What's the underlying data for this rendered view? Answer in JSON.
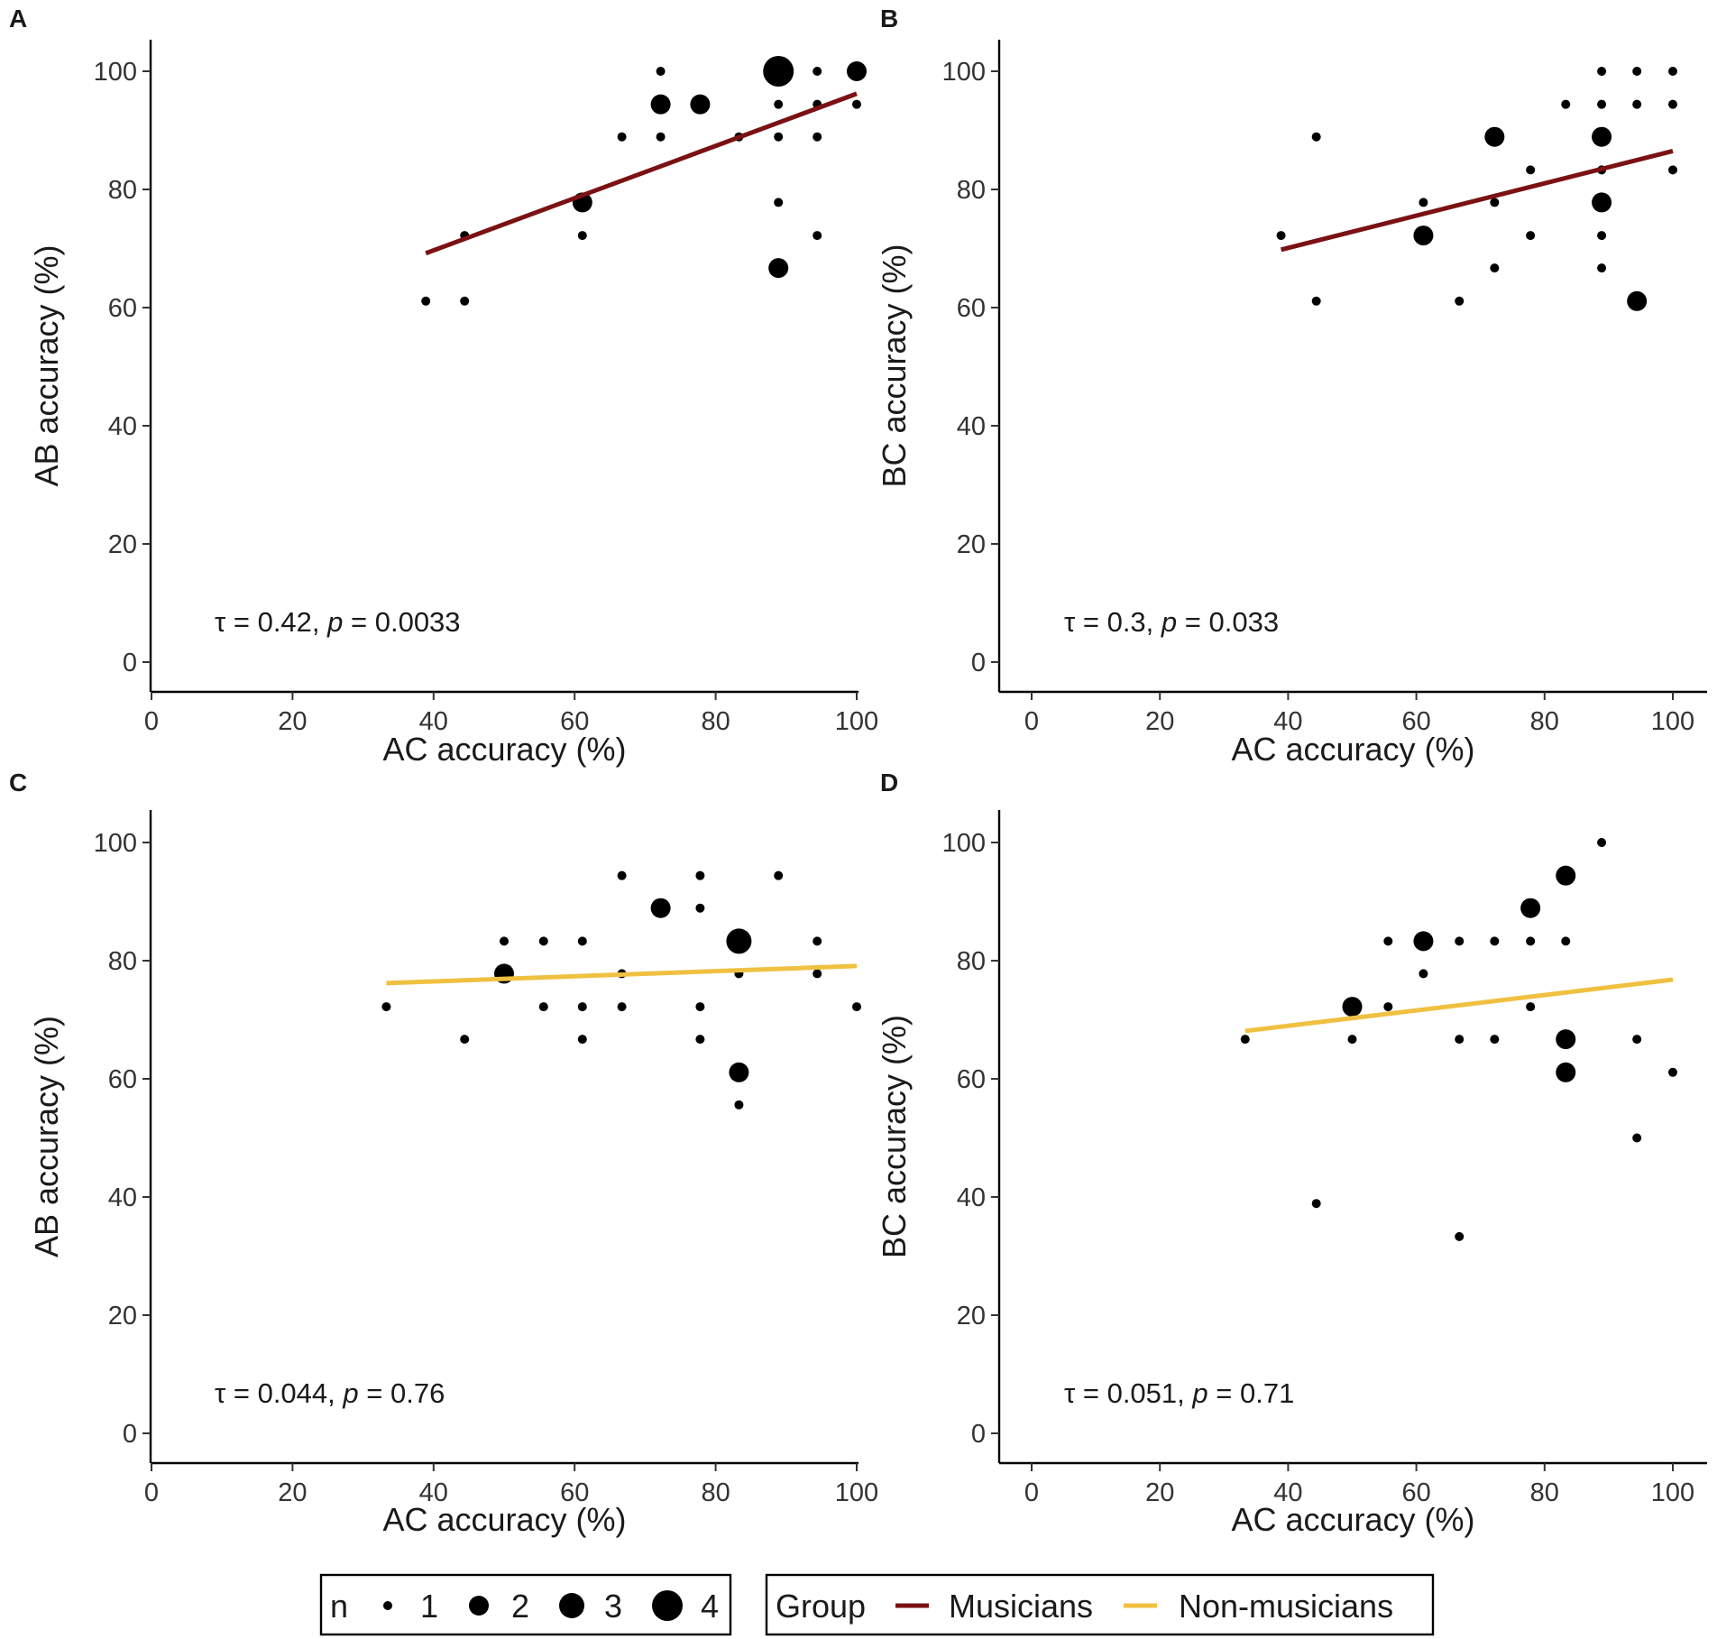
{
  "chart_data": [
    {
      "panel": "A",
      "type": "scatter",
      "xlabel": "AC accuracy (%)",
      "ylabel": "AB accuracy (%)",
      "xlim": [
        -5,
        105
      ],
      "ylim": [
        -5,
        105
      ],
      "xticks": [
        0,
        20,
        40,
        60,
        80,
        100
      ],
      "yticks": [
        0,
        20,
        40,
        60,
        80,
        100
      ],
      "group": "Musicians",
      "annotation": {
        "tau_label": "τ = 0.42, ",
        "p_symbol": "p",
        "p_value": " = 0.0033"
      },
      "fit_line": {
        "x": [
          38.9,
          100
        ],
        "y": [
          69.2,
          96.2
        ]
      },
      "points": [
        {
          "x": 38.9,
          "y": 61.1,
          "n": 1
        },
        {
          "x": 44.4,
          "y": 61.1,
          "n": 1
        },
        {
          "x": 44.4,
          "y": 72.2,
          "n": 1
        },
        {
          "x": 61.1,
          "y": 77.8,
          "n": 2
        },
        {
          "x": 61.1,
          "y": 72.2,
          "n": 1
        },
        {
          "x": 66.7,
          "y": 88.9,
          "n": 1
        },
        {
          "x": 72.2,
          "y": 100,
          "n": 1
        },
        {
          "x": 72.2,
          "y": 94.4,
          "n": 2
        },
        {
          "x": 72.2,
          "y": 88.9,
          "n": 1
        },
        {
          "x": 77.8,
          "y": 94.4,
          "n": 2
        },
        {
          "x": 83.3,
          "y": 88.9,
          "n": 1
        },
        {
          "x": 88.9,
          "y": 100,
          "n": 4
        },
        {
          "x": 88.9,
          "y": 94.4,
          "n": 1
        },
        {
          "x": 88.9,
          "y": 88.9,
          "n": 1
        },
        {
          "x": 88.9,
          "y": 77.8,
          "n": 1
        },
        {
          "x": 88.9,
          "y": 66.7,
          "n": 2
        },
        {
          "x": 94.4,
          "y": 100,
          "n": 1
        },
        {
          "x": 94.4,
          "y": 94.4,
          "n": 1
        },
        {
          "x": 94.4,
          "y": 88.9,
          "n": 1
        },
        {
          "x": 94.4,
          "y": 72.2,
          "n": 1
        },
        {
          "x": 100,
          "y": 100,
          "n": 2
        },
        {
          "x": 100,
          "y": 94.4,
          "n": 1
        }
      ]
    },
    {
      "panel": "B",
      "type": "scatter",
      "xlabel": "AC accuracy (%)",
      "ylabel": "BC accuracy (%)",
      "xlim": [
        -5,
        105
      ],
      "ylim": [
        -5,
        105
      ],
      "xticks": [
        0,
        20,
        40,
        60,
        80,
        100
      ],
      "yticks": [
        0,
        20,
        40,
        60,
        80,
        100
      ],
      "group": "Musicians",
      "annotation": {
        "tau_label": "τ = 0.3, ",
        "p_symbol": "p",
        "p_value": " = 0.033"
      },
      "fit_line": {
        "x": [
          38.9,
          100
        ],
        "y": [
          69.8,
          86.5
        ]
      },
      "points": [
        {
          "x": 38.9,
          "y": 72.2,
          "n": 1
        },
        {
          "x": 44.4,
          "y": 88.9,
          "n": 1
        },
        {
          "x": 44.4,
          "y": 61.1,
          "n": 1
        },
        {
          "x": 61.1,
          "y": 77.8,
          "n": 1
        },
        {
          "x": 61.1,
          "y": 72.2,
          "n": 2
        },
        {
          "x": 66.7,
          "y": 61.1,
          "n": 1
        },
        {
          "x": 72.2,
          "y": 88.9,
          "n": 2
        },
        {
          "x": 72.2,
          "y": 77.8,
          "n": 1
        },
        {
          "x": 72.2,
          "y": 66.7,
          "n": 1
        },
        {
          "x": 77.8,
          "y": 83.3,
          "n": 1
        },
        {
          "x": 77.8,
          "y": 72.2,
          "n": 1
        },
        {
          "x": 83.3,
          "y": 94.4,
          "n": 1
        },
        {
          "x": 88.9,
          "y": 100,
          "n": 1
        },
        {
          "x": 88.9,
          "y": 94.4,
          "n": 1
        },
        {
          "x": 88.9,
          "y": 88.9,
          "n": 2
        },
        {
          "x": 88.9,
          "y": 83.3,
          "n": 1
        },
        {
          "x": 88.9,
          "y": 77.8,
          "n": 2
        },
        {
          "x": 88.9,
          "y": 72.2,
          "n": 1
        },
        {
          "x": 88.9,
          "y": 66.7,
          "n": 1
        },
        {
          "x": 94.4,
          "y": 100,
          "n": 1
        },
        {
          "x": 94.4,
          "y": 94.4,
          "n": 1
        },
        {
          "x": 94.4,
          "y": 61.1,
          "n": 2
        },
        {
          "x": 100,
          "y": 100,
          "n": 1
        },
        {
          "x": 100,
          "y": 94.4,
          "n": 1
        },
        {
          "x": 100,
          "y": 83.3,
          "n": 1
        }
      ]
    },
    {
      "panel": "C",
      "type": "scatter",
      "xlabel": "AC accuracy (%)",
      "ylabel": "AB accuracy (%)",
      "xlim": [
        -5,
        105
      ],
      "ylim": [
        -5,
        105
      ],
      "xticks": [
        0,
        20,
        40,
        60,
        80,
        100
      ],
      "yticks": [
        0,
        20,
        40,
        60,
        80,
        100
      ],
      "group": "Non-musicians",
      "annotation": {
        "tau_label": "τ = 0.044, ",
        "p_symbol": "p",
        "p_value": " = 0.76"
      },
      "fit_line": {
        "x": [
          33.3,
          100
        ],
        "y": [
          76.2,
          79.1
        ]
      },
      "points": [
        {
          "x": 33.3,
          "y": 72.2,
          "n": 1
        },
        {
          "x": 44.4,
          "y": 66.7,
          "n": 1
        },
        {
          "x": 50,
          "y": 83.3,
          "n": 1
        },
        {
          "x": 50,
          "y": 77.8,
          "n": 2
        },
        {
          "x": 55.6,
          "y": 83.3,
          "n": 1
        },
        {
          "x": 55.6,
          "y": 72.2,
          "n": 1
        },
        {
          "x": 61.1,
          "y": 83.3,
          "n": 1
        },
        {
          "x": 61.1,
          "y": 72.2,
          "n": 1
        },
        {
          "x": 61.1,
          "y": 66.7,
          "n": 1
        },
        {
          "x": 66.7,
          "y": 94.4,
          "n": 1
        },
        {
          "x": 66.7,
          "y": 77.8,
          "n": 1
        },
        {
          "x": 66.7,
          "y": 72.2,
          "n": 1
        },
        {
          "x": 72.2,
          "y": 88.9,
          "n": 2
        },
        {
          "x": 77.8,
          "y": 94.4,
          "n": 1
        },
        {
          "x": 77.8,
          "y": 88.9,
          "n": 1
        },
        {
          "x": 77.8,
          "y": 72.2,
          "n": 1
        },
        {
          "x": 77.8,
          "y": 66.7,
          "n": 1
        },
        {
          "x": 83.3,
          "y": 83.3,
          "n": 3
        },
        {
          "x": 83.3,
          "y": 77.8,
          "n": 1
        },
        {
          "x": 83.3,
          "y": 61.1,
          "n": 2
        },
        {
          "x": 83.3,
          "y": 55.6,
          "n": 1
        },
        {
          "x": 88.9,
          "y": 94.4,
          "n": 1
        },
        {
          "x": 94.4,
          "y": 83.3,
          "n": 1
        },
        {
          "x": 94.4,
          "y": 77.8,
          "n": 1
        },
        {
          "x": 100,
          "y": 72.2,
          "n": 1
        }
      ]
    },
    {
      "panel": "D",
      "type": "scatter",
      "xlabel": "AC accuracy (%)",
      "ylabel": "BC accuracy (%)",
      "xlim": [
        -5,
        105
      ],
      "ylim": [
        -5,
        105
      ],
      "xticks": [
        0,
        20,
        40,
        60,
        80,
        100
      ],
      "yticks": [
        0,
        20,
        40,
        60,
        80,
        100
      ],
      "group": "Non-musicians",
      "annotation": {
        "tau_label": "τ = 0.051, ",
        "p_symbol": "p",
        "p_value": " = 0.71"
      },
      "fit_line": {
        "x": [
          33.3,
          100
        ],
        "y": [
          68.1,
          76.8
        ]
      },
      "points": [
        {
          "x": 33.3,
          "y": 66.7,
          "n": 1
        },
        {
          "x": 44.4,
          "y": 38.9,
          "n": 1
        },
        {
          "x": 50,
          "y": 72.2,
          "n": 2
        },
        {
          "x": 50,
          "y": 66.7,
          "n": 1
        },
        {
          "x": 55.6,
          "y": 83.3,
          "n": 1
        },
        {
          "x": 55.6,
          "y": 72.2,
          "n": 1
        },
        {
          "x": 61.1,
          "y": 83.3,
          "n": 2
        },
        {
          "x": 61.1,
          "y": 77.8,
          "n": 1
        },
        {
          "x": 66.7,
          "y": 83.3,
          "n": 1
        },
        {
          "x": 66.7,
          "y": 66.7,
          "n": 1
        },
        {
          "x": 66.7,
          "y": 33.3,
          "n": 1
        },
        {
          "x": 72.2,
          "y": 83.3,
          "n": 1
        },
        {
          "x": 72.2,
          "y": 66.7,
          "n": 1
        },
        {
          "x": 77.8,
          "y": 88.9,
          "n": 2
        },
        {
          "x": 77.8,
          "y": 83.3,
          "n": 1
        },
        {
          "x": 77.8,
          "y": 72.2,
          "n": 1
        },
        {
          "x": 83.3,
          "y": 94.4,
          "n": 2
        },
        {
          "x": 83.3,
          "y": 83.3,
          "n": 1
        },
        {
          "x": 83.3,
          "y": 66.7,
          "n": 2
        },
        {
          "x": 83.3,
          "y": 61.1,
          "n": 2
        },
        {
          "x": 88.9,
          "y": 100,
          "n": 1
        },
        {
          "x": 94.4,
          "y": 66.7,
          "n": 1
        },
        {
          "x": 94.4,
          "y": 50,
          "n": 1
        },
        {
          "x": 100,
          "y": 61.1,
          "n": 1
        }
      ]
    }
  ],
  "legend": {
    "size": {
      "title": "n",
      "items": [
        {
          "label": "1",
          "n": 1
        },
        {
          "label": "2",
          "n": 2
        },
        {
          "label": "3",
          "n": 3
        },
        {
          "label": "4",
          "n": 4
        }
      ]
    },
    "group": {
      "title": "Group",
      "items": [
        {
          "label": "Musicians",
          "color": "#7B1113"
        },
        {
          "label": "Non-musicians",
          "color": "#F0C040"
        }
      ]
    }
  },
  "colors": {
    "Musicians": "#7B1113",
    "Non-musicians": "#F0C040",
    "points": "#000000"
  }
}
